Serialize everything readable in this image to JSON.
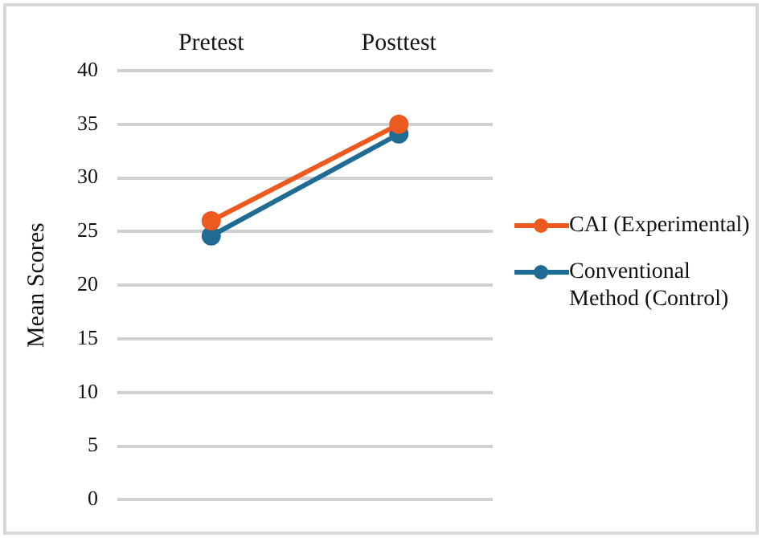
{
  "chart_data": {
    "type": "line",
    "ylabel": "Mean Scores",
    "categories": [
      "Pretest",
      "Posttest"
    ],
    "series": [
      {
        "name": "CAI (Experimental)",
        "color": "#ed5a1f",
        "values": [
          26.0,
          35.0
        ]
      },
      {
        "name": "Conventional Method (Control)",
        "color": "#1f6b94",
        "values": [
          24.6,
          34.1
        ]
      }
    ],
    "ylim": [
      0,
      40
    ],
    "yticks": [
      0,
      5,
      10,
      15,
      20,
      25,
      30,
      35,
      40
    ],
    "grid": "y",
    "legend": "right",
    "marker": "circle",
    "line_style": "solid"
  }
}
